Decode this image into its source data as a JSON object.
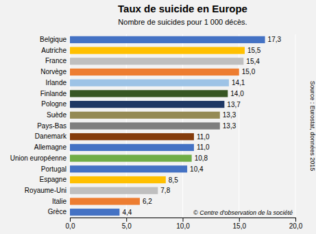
{
  "chart_data": {
    "type": "bar",
    "orientation": "horizontal",
    "title": "Taux de suicide en Europe",
    "subtitle": "Nombre de suicides pour 1 000 décès.",
    "annotations": [
      "Source : Eurostat, données 2015",
      "© Centre d'observation de la société"
    ],
    "categories": [
      "Belgique",
      "Autriche",
      "France",
      "Norvège",
      "Irlande",
      "Finlande",
      "Pologne",
      "Suède",
      "Pays-Bas",
      "Danemark",
      "Allemagne",
      "Union européenne",
      "Portugal",
      "Espagne",
      "Royaume-Uni",
      "Italie",
      "Grèce"
    ],
    "values": [
      17.3,
      15.5,
      15.4,
      15.0,
      14.1,
      14.0,
      13.7,
      13.3,
      13.3,
      11.0,
      11.0,
      10.8,
      10.4,
      8.5,
      7.8,
      6.2,
      4.4
    ],
    "value_labels": [
      "17,3",
      "15,5",
      "15,4",
      "15,0",
      "14,1",
      "14,0",
      "13,7",
      "13,3",
      "13,3",
      "11,0",
      "11,0",
      "10,8",
      "10,4",
      "8,5",
      "7,8",
      "6,2",
      "4,4"
    ],
    "data_labels": true,
    "colors": [
      "#4472c4",
      "#ffc000",
      "#bfbfbf",
      "#ed7d31",
      "#9dc3e6",
      "#375623",
      "#1f3864",
      "#948a54",
      "#7f7f7f",
      "#843c0c",
      "#4472c4",
      "#70ad47",
      "#4472c4",
      "#ffc000",
      "#bfbfbf",
      "#ed7d31",
      "#4472c4"
    ],
    "xlim": [
      0,
      20
    ],
    "xticks": [
      {
        "value": 0.0,
        "label": "0,0"
      },
      {
        "value": 5.0,
        "label": "5,0"
      },
      {
        "value": 10.0,
        "label": "10,0"
      },
      {
        "value": 15.0,
        "label": "15,0"
      },
      {
        "value": 20.0,
        "label": "20,0"
      }
    ],
    "grid": true
  }
}
